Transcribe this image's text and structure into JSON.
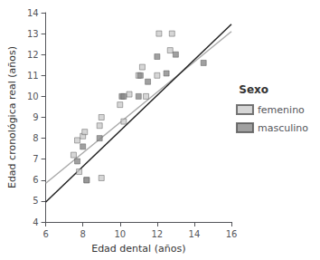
{
  "chart_data": {
    "type": "scatter",
    "xlabel": "Edad dental (años)",
    "ylabel": "Edad cronológica real (años)",
    "legend_title": "Sexo",
    "legend": "right",
    "grid": false,
    "series": [
      {
        "name": "femenino",
        "type": "scatter",
        "marker": "square",
        "color": "#cccccc",
        "x": [
          7.5,
          7.7,
          7.8,
          8.0,
          8.1,
          8.2,
          8.9,
          9.0,
          9.0,
          10.0,
          10.2,
          10.5,
          11.0,
          11.2,
          11.4,
          12.0,
          12.1,
          12.7,
          12.8
        ],
        "values": [
          7.2,
          7.9,
          6.4,
          8.1,
          8.3,
          6.0,
          8.6,
          9.0,
          6.1,
          9.6,
          8.8,
          10.1,
          11.0,
          11.4,
          10.0,
          11.0,
          13.0,
          12.2,
          13.0
        ]
      },
      {
        "name": "masculino",
        "type": "scatter",
        "marker": "square",
        "color": "#888888",
        "x": [
          7.7,
          8.0,
          8.2,
          8.9,
          10.1,
          10.2,
          11.0,
          11.1,
          11.5,
          12.0,
          12.5,
          13.0,
          14.5
        ],
        "values": [
          6.9,
          7.6,
          6.0,
          8.0,
          10.0,
          10.0,
          10.0,
          11.0,
          10.7,
          11.9,
          11.1,
          12.0,
          11.6
        ]
      },
      {
        "name": "femenino",
        "type": "line",
        "color": "#aaaaaa",
        "x": [
          6.0,
          16.0
        ],
        "values": [
          5.85,
          13.1
        ]
      },
      {
        "name": "masculino",
        "type": "line",
        "color": "#222222",
        "x": [
          6.0,
          16.0
        ],
        "values": [
          4.95,
          13.45
        ]
      }
    ],
    "xlim": [
      6,
      16
    ],
    "ylim": [
      4,
      14
    ],
    "xticks": [
      6,
      8,
      10,
      12,
      14,
      16
    ],
    "yticks": [
      4,
      5,
      6,
      7,
      8,
      9,
      10,
      11,
      12,
      13,
      14
    ]
  }
}
